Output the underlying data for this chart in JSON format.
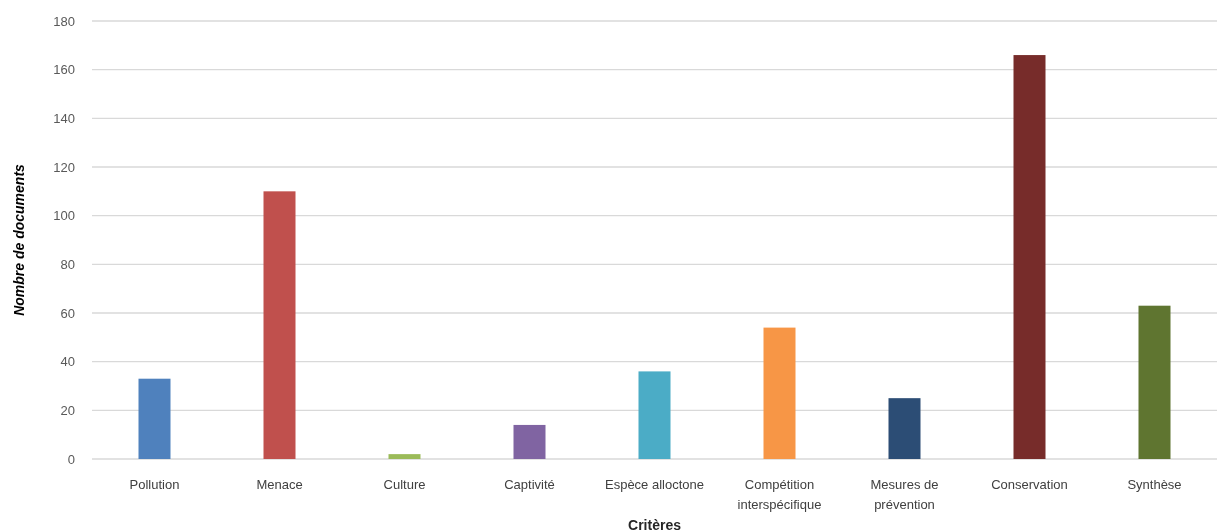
{
  "chart_data": {
    "type": "bar",
    "xlabel": "Critères",
    "ylabel": "Nombre de documents",
    "categories": [
      "Pollution",
      "Menace",
      "Culture",
      "Captivité",
      "Espèce alloctone",
      "Compétition interspécifique",
      "Mesures de prévention",
      "Conservation",
      "Synthèse"
    ],
    "values": [
      33,
      110,
      2,
      14,
      36,
      54,
      25,
      166,
      63
    ],
    "colors": [
      "#4f81bd",
      "#c0504d",
      "#9bbb59",
      "#8064a2",
      "#4bacc6",
      "#f79646",
      "#2c4d75",
      "#772c2a",
      "#5f7530"
    ],
    "ylim": [
      0,
      180
    ],
    "yticks": [
      0,
      20,
      40,
      60,
      80,
      100,
      120,
      140,
      160,
      180
    ],
    "grid": "y"
  }
}
